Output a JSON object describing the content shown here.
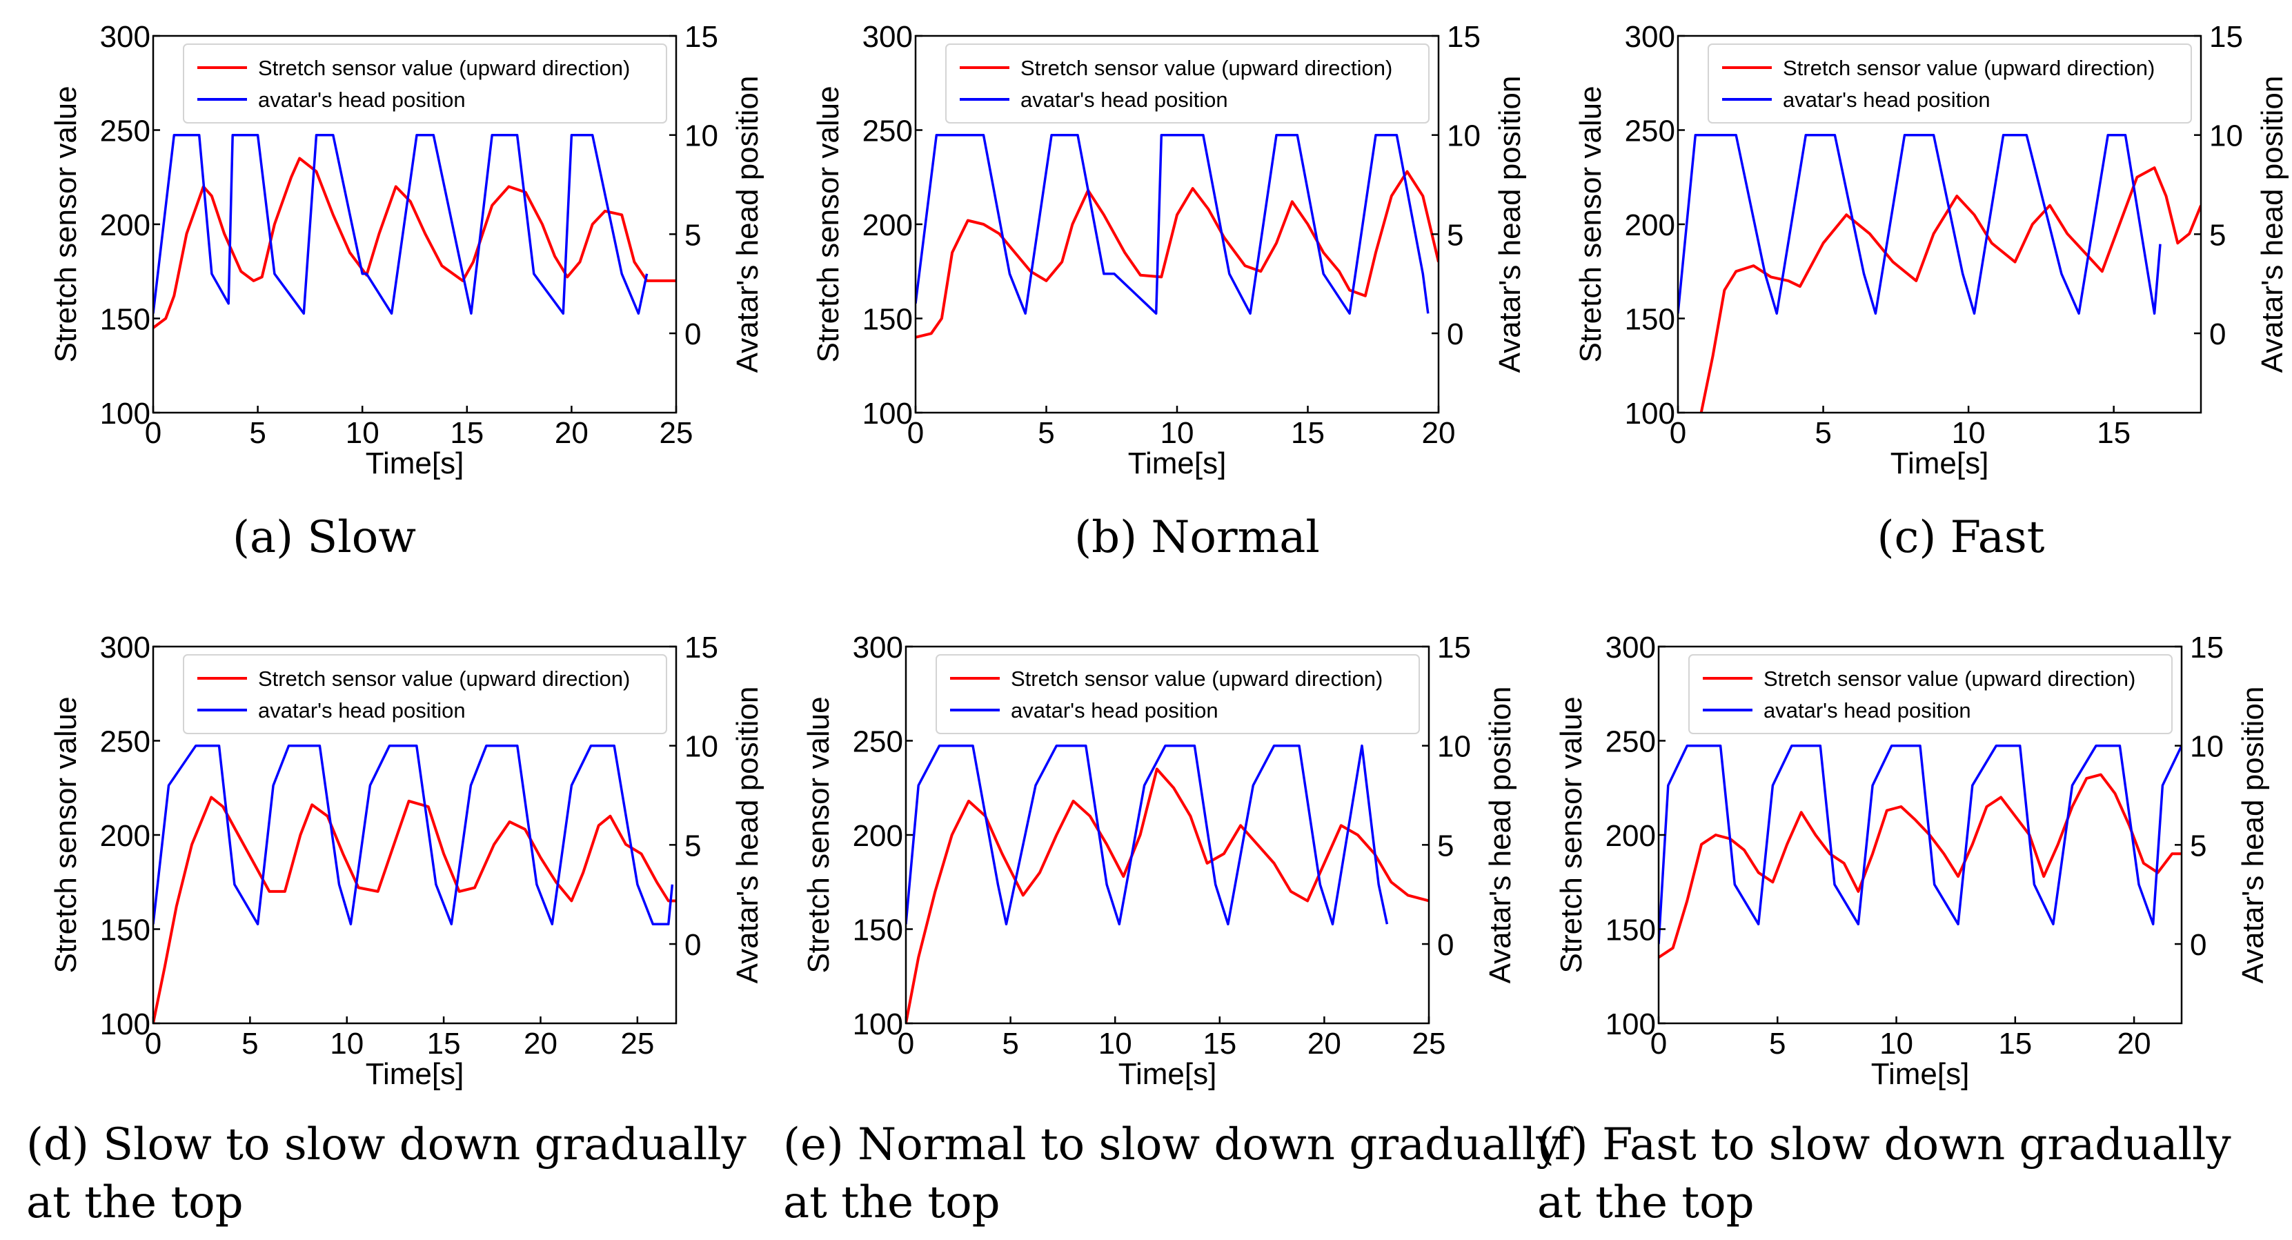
{
  "colors": {
    "sensor": "#ff0000",
    "head": "#0000ff",
    "axis": "#000000",
    "background": "#ffffff"
  },
  "chart_data": [
    {
      "type": "line",
      "panel": "a",
      "caption_lines": [
        "(a)  Slow"
      ],
      "xlabel": "Time[s]",
      "ylabel": "Stretch sensor value",
      "ylabel_right": "Avatar's head position",
      "xlim": [
        0,
        25
      ],
      "xticks": [
        "0",
        "5",
        "10",
        "15",
        "20",
        "25"
      ],
      "ylim": [
        100,
        300
      ],
      "yticks": [
        "100",
        "150",
        "200",
        "250",
        "300"
      ],
      "ylim_right": [
        -4,
        15
      ],
      "yticks_right": [
        "0",
        "5",
        "10",
        "15"
      ],
      "legend_position": "top-right",
      "legend": [
        "Stretch sensor value (upward direction)",
        "avatar's head position"
      ],
      "series": [
        {
          "name": "Stretch sensor value (upward direction)",
          "axis": "left",
          "x": [
            0,
            0.6,
            1.0,
            1.6,
            2.4,
            2.8,
            3.4,
            4.2,
            4.8,
            5.2,
            5.8,
            6.6,
            7.0,
            7.8,
            8.6,
            9.4,
            10.2,
            10.8,
            11.6,
            12.3,
            13.0,
            13.8,
            14.8,
            15.3,
            16.2,
            17.0,
            17.8,
            18.6,
            19.2,
            19.8,
            20.4,
            21.0,
            21.6,
            22.4,
            23.0,
            23.6,
            24.2,
            25.0
          ],
          "y": [
            145,
            150,
            162,
            195,
            220,
            215,
            195,
            175,
            170,
            172,
            200,
            225,
            235,
            228,
            205,
            185,
            173,
            195,
            220,
            212,
            195,
            178,
            170,
            180,
            210,
            220,
            217,
            200,
            183,
            172,
            180,
            200,
            207,
            205,
            180,
            170,
            170,
            170
          ]
        },
        {
          "name": "avatar's head position",
          "axis": "right",
          "x": [
            0,
            1.0,
            2.2,
            2.8,
            3.6,
            3.8,
            4.8,
            5.0,
            5.8,
            7.2,
            7.8,
            8.6,
            10.0,
            10.2,
            11.4,
            12.6,
            13.4,
            14.8,
            15.2,
            16.2,
            17.4,
            18.2,
            19.6,
            20.0,
            21.0,
            22.4,
            23.2,
            23.6
          ],
          "y": [
            1,
            10,
            10,
            3,
            1.5,
            10,
            10,
            10,
            3,
            1,
            10,
            10,
            3,
            3,
            1,
            10,
            10,
            3,
            1,
            10,
            10,
            3,
            1,
            10,
            10,
            3,
            1,
            3
          ]
        }
      ]
    },
    {
      "type": "line",
      "panel": "b",
      "caption_lines": [
        "(b)  Normal"
      ],
      "xlabel": "Time[s]",
      "ylabel": "Stretch sensor value",
      "ylabel_right": "Avatar's head position",
      "xlim": [
        0,
        20
      ],
      "xticks": [
        "0",
        "5",
        "10",
        "15",
        "20"
      ],
      "ylim": [
        100,
        300
      ],
      "yticks": [
        "100",
        "150",
        "200",
        "250",
        "300"
      ],
      "ylim_right": [
        -4,
        15
      ],
      "yticks_right": [
        "0",
        "5",
        "10",
        "15"
      ],
      "legend_position": "top-right",
      "legend": [
        "Stretch sensor value (upward direction)",
        "avatar's head position"
      ],
      "series": [
        {
          "name": "Stretch sensor value (upward direction)",
          "axis": "left",
          "x": [
            0,
            0.6,
            1.0,
            1.4,
            2.0,
            2.6,
            3.2,
            3.8,
            4.4,
            5.0,
            5.6,
            6.0,
            6.6,
            7.2,
            8.0,
            8.6,
            9.4,
            10.0,
            10.6,
            11.2,
            11.8,
            12.6,
            13.2,
            13.8,
            14.4,
            15.0,
            15.6,
            16.2,
            16.6,
            17.2,
            17.6,
            18.2,
            18.8,
            19.4,
            20.0
          ],
          "y": [
            140,
            142,
            150,
            185,
            202,
            200,
            195,
            185,
            175,
            170,
            180,
            200,
            218,
            205,
            185,
            173,
            172,
            205,
            219,
            208,
            193,
            178,
            175,
            190,
            212,
            200,
            185,
            175,
            165,
            162,
            185,
            215,
            228,
            215,
            180
          ]
        },
        {
          "name": "avatar's head position",
          "axis": "right",
          "x": [
            0,
            0.8,
            1.6,
            2.6,
            3.6,
            4.2,
            5.2,
            6.2,
            7.2,
            7.6,
            9.2,
            9.4,
            10.4,
            11.0,
            12.0,
            12.8,
            13.8,
            14.6,
            15.6,
            16.6,
            17.6,
            18.4,
            19.4,
            19.6
          ],
          "y": [
            1.5,
            10,
            10,
            10,
            3,
            1,
            10,
            10,
            3,
            3,
            1,
            10,
            10,
            10,
            3,
            1,
            10,
            10,
            3,
            1,
            10,
            10,
            3,
            1
          ]
        }
      ]
    },
    {
      "type": "line",
      "panel": "c",
      "caption_lines": [
        "(c)  Fast"
      ],
      "xlabel": "Time[s]",
      "ylabel": "Stretch sensor value",
      "ylabel_right": "Avatar's head position",
      "xlim": [
        0,
        18
      ],
      "xticks": [
        "0",
        "5",
        "10",
        "15"
      ],
      "ylim": [
        100,
        300
      ],
      "yticks": [
        "100",
        "150",
        "200",
        "250",
        "300"
      ],
      "ylim_right": [
        -4,
        15
      ],
      "yticks_right": [
        "0",
        "5",
        "10",
        "15"
      ],
      "legend_position": "top-right",
      "legend": [
        "Stretch sensor value (upward direction)",
        "avatar's head position"
      ],
      "series": [
        {
          "name": "Stretch sensor value (upward direction)",
          "axis": "left",
          "x": [
            0.8,
            1.2,
            1.6,
            2.0,
            2.6,
            3.2,
            3.8,
            4.2,
            5.0,
            5.8,
            6.6,
            7.4,
            8.2,
            8.8,
            9.6,
            10.2,
            10.8,
            11.6,
            12.2,
            12.8,
            13.4,
            14.0,
            14.6,
            15.2,
            15.8,
            16.4,
            16.8,
            17.2,
            17.6,
            18.0
          ],
          "y": [
            100,
            130,
            165,
            175,
            178,
            172,
            170,
            167,
            190,
            205,
            195,
            180,
            170,
            195,
            215,
            205,
            190,
            180,
            200,
            210,
            195,
            185,
            175,
            200,
            225,
            230,
            215,
            190,
            195,
            210
          ]
        },
        {
          "name": "avatar's head position",
          "axis": "right",
          "x": [
            0,
            0.6,
            1.6,
            2.0,
            3.0,
            3.4,
            4.4,
            5.4,
            6.4,
            6.8,
            7.8,
            8.8,
            9.8,
            10.2,
            11.2,
            12.0,
            13.2,
            13.8,
            14.8,
            15.4,
            16.4,
            16.6
          ],
          "y": [
            1,
            10,
            10,
            10,
            3,
            1,
            10,
            10,
            3,
            1,
            10,
            10,
            3,
            1,
            10,
            10,
            3,
            1,
            10,
            10,
            1,
            4.5
          ]
        }
      ]
    },
    {
      "type": "line",
      "panel": "d",
      "caption_lines": [
        "(d)  Slow to slow down gradually",
        "at the top"
      ],
      "xlabel": "Time[s]",
      "ylabel": "Stretch sensor value",
      "ylabel_right": "Avatar's head position",
      "xlim": [
        0,
        27
      ],
      "xticks": [
        "0",
        "5",
        "10",
        "15",
        "20",
        "25"
      ],
      "ylim": [
        100,
        300
      ],
      "yticks": [
        "100",
        "150",
        "200",
        "250",
        "300"
      ],
      "ylim_right": [
        -4,
        15
      ],
      "yticks_right": [
        "0",
        "5",
        "10",
        "15"
      ],
      "legend_position": "top-right",
      "legend": [
        "Stretch sensor value (upward direction)",
        "avatar's head position"
      ],
      "series": [
        {
          "name": "Stretch sensor value (upward direction)",
          "axis": "left",
          "x": [
            0,
            0.6,
            1.2,
            2.0,
            3.0,
            3.6,
            4.4,
            5.2,
            6.0,
            6.8,
            7.6,
            8.2,
            9.0,
            9.8,
            10.6,
            11.6,
            12.6,
            13.2,
            14.2,
            15.0,
            15.8,
            16.6,
            17.6,
            18.4,
            19.2,
            20.0,
            20.8,
            21.6,
            22.2,
            23.0,
            23.6,
            24.4,
            25.2,
            26.0,
            26.6,
            27.0
          ],
          "y": [
            100,
            130,
            162,
            195,
            220,
            215,
            200,
            185,
            170,
            170,
            200,
            216,
            210,
            190,
            172,
            170,
            200,
            218,
            215,
            190,
            170,
            172,
            195,
            207,
            203,
            188,
            175,
            165,
            180,
            205,
            210,
            195,
            190,
            175,
            165,
            165
          ]
        },
        {
          "name": "avatar's head position",
          "axis": "right",
          "x": [
            0,
            0.8,
            2.2,
            3.4,
            4.2,
            5.4,
            6.2,
            7.0,
            8.6,
            9.6,
            10.2,
            11.2,
            12.2,
            13.6,
            14.6,
            15.4,
            16.4,
            17.2,
            18.8,
            19.8,
            20.6,
            21.6,
            22.6,
            23.8,
            25.0,
            25.8,
            26.6,
            26.8
          ],
          "y": [
            1,
            8,
            10,
            10,
            3,
            1,
            8,
            10,
            10,
            3,
            1,
            8,
            10,
            10,
            3,
            1,
            8,
            10,
            10,
            3,
            1,
            8,
            10,
            10,
            3,
            1,
            1,
            3
          ]
        }
      ]
    },
    {
      "type": "line",
      "panel": "e",
      "caption_lines": [
        "(e)  Normal to slow down gradually",
        "at the top"
      ],
      "xlabel": "Time[s]",
      "ylabel": "Stretch sensor value",
      "ylabel_right": "Avatar's head position",
      "xlim": [
        0,
        25
      ],
      "xticks": [
        "0",
        "5",
        "10",
        "15",
        "20",
        "25"
      ],
      "ylim": [
        100,
        300
      ],
      "yticks": [
        "100",
        "150",
        "200",
        "250",
        "300"
      ],
      "ylim_right": [
        -4,
        15
      ],
      "yticks_right": [
        "0",
        "5",
        "10",
        "15"
      ],
      "legend_position": "top-right",
      "legend": [
        "Stretch sensor value (upward direction)",
        "avatar's head position"
      ],
      "series": [
        {
          "name": "Stretch sensor value (upward direction)",
          "axis": "left",
          "x": [
            0,
            0.6,
            1.4,
            2.2,
            3.0,
            3.8,
            4.6,
            5.6,
            6.4,
            7.2,
            8.0,
            8.8,
            9.6,
            10.4,
            11.2,
            12.0,
            12.8,
            13.6,
            14.4,
            15.2,
            16.0,
            16.8,
            17.6,
            18.4,
            19.2,
            20.0,
            20.8,
            21.6,
            22.4,
            23.2,
            24.0,
            25.0
          ],
          "y": [
            100,
            135,
            170,
            200,
            218,
            210,
            190,
            168,
            180,
            200,
            218,
            210,
            195,
            178,
            200,
            235,
            225,
            210,
            185,
            190,
            205,
            195,
            185,
            170,
            165,
            185,
            205,
            200,
            190,
            175,
            168,
            165
          ]
        },
        {
          "name": "avatar's head position",
          "axis": "right",
          "x": [
            0,
            0.6,
            1.6,
            3.2,
            4.4,
            4.8,
            6.2,
            7.2,
            8.6,
            9.6,
            10.2,
            11.4,
            12.4,
            13.8,
            14.8,
            15.4,
            16.6,
            17.6,
            18.8,
            19.8,
            20.4,
            21.8,
            22.6,
            23.0
          ],
          "y": [
            1,
            8,
            10,
            10,
            3,
            1,
            8,
            10,
            10,
            3,
            1,
            8,
            10,
            10,
            3,
            1,
            8,
            10,
            10,
            3,
            1,
            10,
            3,
            1
          ]
        }
      ]
    },
    {
      "type": "line",
      "panel": "f",
      "caption_lines": [
        "(f)  Fast to slow down gradually",
        "at the top"
      ],
      "xlabel": "Time[s]",
      "ylabel": "Stretch sensor value",
      "ylabel_right": "Avatar's head position",
      "xlim": [
        0,
        22
      ],
      "xticks": [
        "0",
        "5",
        "10",
        "15",
        "20"
      ],
      "ylim": [
        100,
        300
      ],
      "yticks": [
        "100",
        "150",
        "200",
        "250",
        "300"
      ],
      "ylim_right": [
        -4,
        15
      ],
      "yticks_right": [
        "0",
        "5",
        "10",
        "15"
      ],
      "legend_position": "top-right",
      "legend": [
        "Stretch sensor value (upward direction)",
        "avatar's head position"
      ],
      "series": [
        {
          "name": "Stretch sensor value (upward direction)",
          "axis": "left",
          "x": [
            0,
            0.6,
            1.2,
            1.8,
            2.4,
            3.0,
            3.6,
            4.2,
            4.8,
            5.4,
            6.0,
            6.6,
            7.2,
            7.8,
            8.4,
            9.0,
            9.6,
            10.2,
            10.8,
            11.4,
            12.0,
            12.6,
            13.2,
            13.8,
            14.4,
            15.0,
            15.6,
            16.2,
            16.8,
            17.4,
            18.0,
            18.6,
            19.2,
            19.8,
            20.4,
            21.0,
            21.6,
            22.0
          ],
          "y": [
            135,
            140,
            165,
            195,
            200,
            198,
            192,
            180,
            175,
            195,
            212,
            200,
            190,
            185,
            170,
            190,
            213,
            215,
            208,
            200,
            190,
            178,
            195,
            215,
            220,
            210,
            200,
            178,
            195,
            215,
            230,
            232,
            222,
            205,
            185,
            180,
            190,
            190
          ]
        },
        {
          "name": "avatar's head position",
          "axis": "right",
          "x": [
            0,
            0.4,
            1.2,
            2.6,
            3.2,
            4.2,
            4.8,
            5.6,
            6.8,
            7.4,
            8.4,
            9.0,
            9.8,
            11.0,
            11.6,
            12.6,
            13.2,
            14.2,
            15.2,
            15.8,
            16.6,
            17.4,
            18.4,
            19.4,
            20.2,
            20.8,
            21.2,
            22.0
          ],
          "y": [
            0,
            8,
            10,
            10,
            3,
            1,
            8,
            10,
            10,
            3,
            1,
            8,
            10,
            10,
            3,
            1,
            8,
            10,
            10,
            3,
            1,
            8,
            10,
            10,
            3,
            1,
            8,
            10
          ]
        }
      ]
    }
  ]
}
